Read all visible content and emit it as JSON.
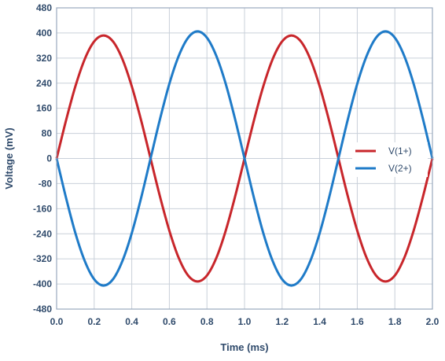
{
  "chart_data": {
    "type": "line",
    "title": "",
    "xlabel": "Time (ms)",
    "ylabel": "Voltage (mV)",
    "xlim": [
      0,
      2.0
    ],
    "ylim": [
      -480,
      480
    ],
    "x_ticks": [
      "0.0",
      "0.2",
      "0.4",
      "0.6",
      "0.8",
      "1.0",
      "1.2",
      "1.4",
      "1.6",
      "1.8",
      "2.0"
    ],
    "y_ticks": [
      "480",
      "400",
      "320",
      "240",
      "160",
      "80",
      "0",
      "-80",
      "-160",
      "-240",
      "-320",
      "-400",
      "-480"
    ],
    "grid": true,
    "legend_position": "right",
    "x": [
      0.0,
      0.05,
      0.1,
      0.15,
      0.2,
      0.25,
      0.3,
      0.35,
      0.4,
      0.45,
      0.5,
      0.55,
      0.6,
      0.65,
      0.7,
      0.75,
      0.8,
      0.85,
      0.9,
      0.95,
      1.0,
      1.05,
      1.1,
      1.15,
      1.2,
      1.25,
      1.3,
      1.35,
      1.4,
      1.45,
      1.5,
      1.55,
      1.6,
      1.65,
      1.7,
      1.75,
      1.8,
      1.85,
      1.9,
      1.95,
      2.0
    ],
    "series": [
      {
        "name": "V(1+)",
        "color": "#c8262b",
        "values": [
          0,
          121,
          230,
          317,
          373,
          392,
          373,
          317,
          230,
          121,
          0,
          -121,
          -230,
          -317,
          -373,
          -392,
          -373,
          -317,
          -230,
          -121,
          0,
          121,
          230,
          317,
          373,
          392,
          373,
          317,
          230,
          121,
          0,
          -121,
          -230,
          -317,
          -373,
          -392,
          -373,
          -317,
          -230,
          -121,
          0
        ]
      },
      {
        "name": "V(2+)",
        "color": "#1f7bc8",
        "values": [
          0,
          -125,
          -238,
          -327,
          -385,
          -405,
          -385,
          -327,
          -238,
          -125,
          0,
          125,
          238,
          327,
          385,
          405,
          385,
          327,
          238,
          125,
          0,
          -125,
          -238,
          -327,
          -385,
          -405,
          -385,
          -327,
          -238,
          -125,
          0,
          125,
          238,
          327,
          385,
          405,
          385,
          327,
          238,
          125,
          0
        ]
      }
    ]
  }
}
